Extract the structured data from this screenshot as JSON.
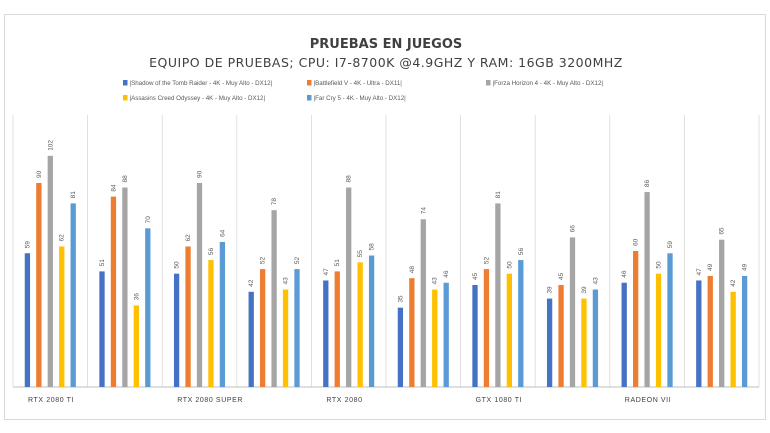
{
  "colors": {
    "tomb_raider": "#4472c4",
    "battlefield": "#ed7d31",
    "forza": "#a5a5a5",
    "odyssey": "#ffc000",
    "far_cry": "#5b9bd5",
    "grid": "#d9d9d9",
    "axis": "#bfbfbf"
  },
  "chart_data": {
    "type": "bar",
    "title": "PRUEBAS EN JUEGOS",
    "subtitle": "EQUIPO DE PRUEBAS; CPU: I7-8700K @4.9GHZ Y RAM: 16GB 3200MHZ",
    "xlabel": "",
    "ylabel": "",
    "legend_position": "top",
    "ylim": [
      0,
      120
    ],
    "categories": [
      "RTX 2080 TI",
      "",
      "RTX 2080 SUPER",
      "",
      "RTX 2080",
      "",
      "GTX 1080 TI",
      "",
      "RADEON VII",
      ""
    ],
    "series": [
      {
        "name": "|Shadow of the Tomb Raider - 4K - Muy Alto - DX12|",
        "color_key": "tomb_raider",
        "values": [
          59,
          51,
          50,
          42,
          47,
          35,
          45,
          39,
          46,
          47
        ]
      },
      {
        "name": "|Battlefield V - 4K - Ultra - DX11|",
        "color_key": "battlefield",
        "values": [
          90,
          84,
          62,
          52,
          51,
          48,
          52,
          45,
          60,
          49
        ]
      },
      {
        "name": "|Forza Horizon 4 - 4K - Muy Alto - DX12|",
        "color_key": "forza",
        "values": [
          102,
          88,
          90,
          78,
          88,
          74,
          81,
          66,
          86,
          65
        ]
      },
      {
        "name": "|Assasins Creed Odyssey - 4K - Muy Alto - DX12|",
        "color_key": "odyssey",
        "values": [
          62,
          36,
          56,
          43,
          55,
          43,
          50,
          39,
          50,
          42
        ]
      },
      {
        "name": "|Far Cry 5 - 4K - Muy Alto - DX12|",
        "color_key": "far_cry",
        "values": [
          81,
          70,
          64,
          52,
          58,
          46,
          56,
          43,
          59,
          49
        ]
      }
    ]
  }
}
